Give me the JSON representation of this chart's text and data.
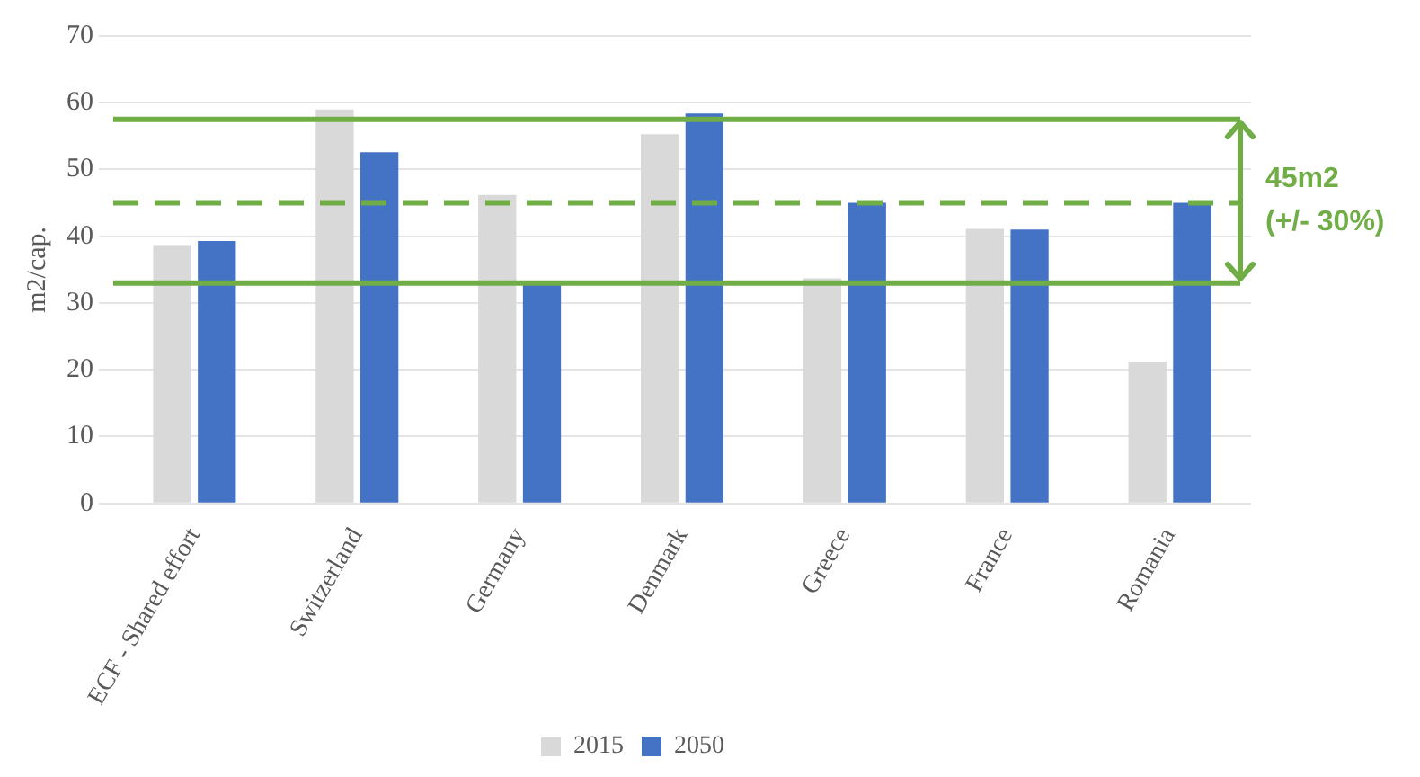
{
  "chart_data": {
    "type": "bar",
    "ylabel": "m2/cap.",
    "categories": [
      "ECF - Shared effort",
      "Switzerland",
      "Germany",
      "Denmark",
      "Greece",
      "France",
      "Romania"
    ],
    "series": [
      {
        "name": "2015",
        "color": "#d9d9d9",
        "values": [
          38.7,
          59,
          46.2,
          55.3,
          33.7,
          41.1,
          21.2
        ]
      },
      {
        "name": "2050",
        "color": "#4472c4",
        "values": [
          39.3,
          52.6,
          32.7,
          58.4,
          45,
          41,
          45
        ]
      }
    ],
    "ylim": [
      0,
      70
    ],
    "yticks": [
      0,
      10,
      20,
      30,
      40,
      50,
      60,
      70
    ],
    "grid": "y",
    "legend": "bottom",
    "ref_lines": [
      {
        "axis": "y",
        "value": 57.5,
        "color": "#70ad47",
        "line_style": "solid"
      },
      {
        "axis": "y",
        "value": 45,
        "color": "#70ad47",
        "line_style": "dashed"
      },
      {
        "axis": "y",
        "value": 33,
        "color": "#70ad47",
        "line_style": "solid"
      }
    ],
    "annotations": [
      "45m2 (+/- 30%)"
    ]
  }
}
